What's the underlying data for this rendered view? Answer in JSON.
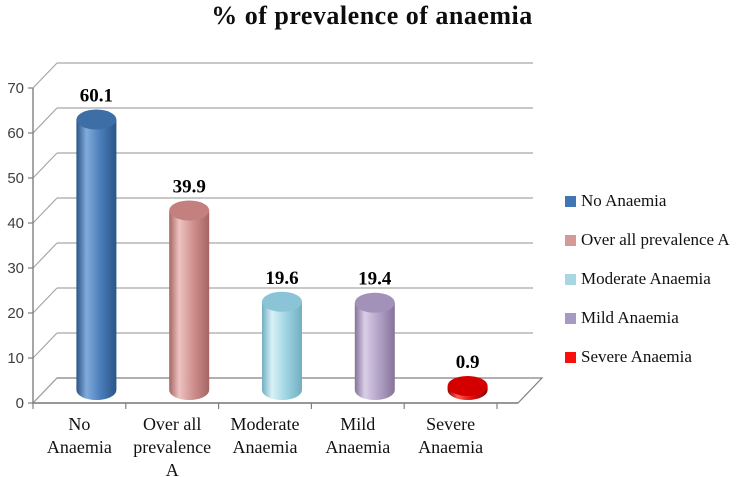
{
  "title": "% of prevalence of anaemia",
  "chart_data": {
    "type": "bar",
    "subtype": "3d-cylinder",
    "title": "% of prevalence of anaemia",
    "categories": [
      "No\nAnaemia",
      "Over all\nprevalence\nA",
      "Moderate\nAnaemia",
      "Mild\nAnaemia",
      "Severe\nAnaemia"
    ],
    "values": [
      60.1,
      39.9,
      19.6,
      19.4,
      0.9
    ],
    "value_labels": [
      "60.1",
      "39.9",
      "19.6",
      "19.4",
      "0.9"
    ],
    "ylim": [
      0,
      70
    ],
    "ytick_step": 10,
    "yticks": [
      0,
      10,
      20,
      30,
      40,
      50,
      60,
      70
    ],
    "grid": true,
    "legend_position": "right",
    "legend": {
      "entries": [
        {
          "label": "No Anaemia",
          "color": "#4176b4"
        },
        {
          "label": "Over all prevalence A",
          "color": "#d49a98"
        },
        {
          "label": "Moderate Anaemia",
          "color": "#a6d7e3"
        },
        {
          "label": "Mild Anaemia",
          "color": "#a79ac2"
        },
        {
          "label": "Severe Anaemia",
          "color": "#fb0f0c"
        }
      ]
    },
    "bar_colors": [
      {
        "main": "#4a7ebb",
        "light": "#82abda",
        "dark": "#2a5586",
        "top": "#3e6ea6"
      },
      {
        "main": "#cf908e",
        "light": "#ecc3c1",
        "dark": "#a66562",
        "top": "#c3807e"
      },
      {
        "main": "#9fd4e2",
        "light": "#d9f1f7",
        "dark": "#72aec1",
        "top": "#8ac4d6"
      },
      {
        "main": "#b3a2c7",
        "light": "#d9cee6",
        "dark": "#877299",
        "top": "#a292ba"
      },
      {
        "main": "#e30d0d",
        "light": "#ff5a52",
        "dark": "#8f0000",
        "top": "#d40000"
      }
    ],
    "axis_color": "#808080",
    "grid_color": "#a6a6a6",
    "tick_label_color": "#3f3f3f"
  }
}
